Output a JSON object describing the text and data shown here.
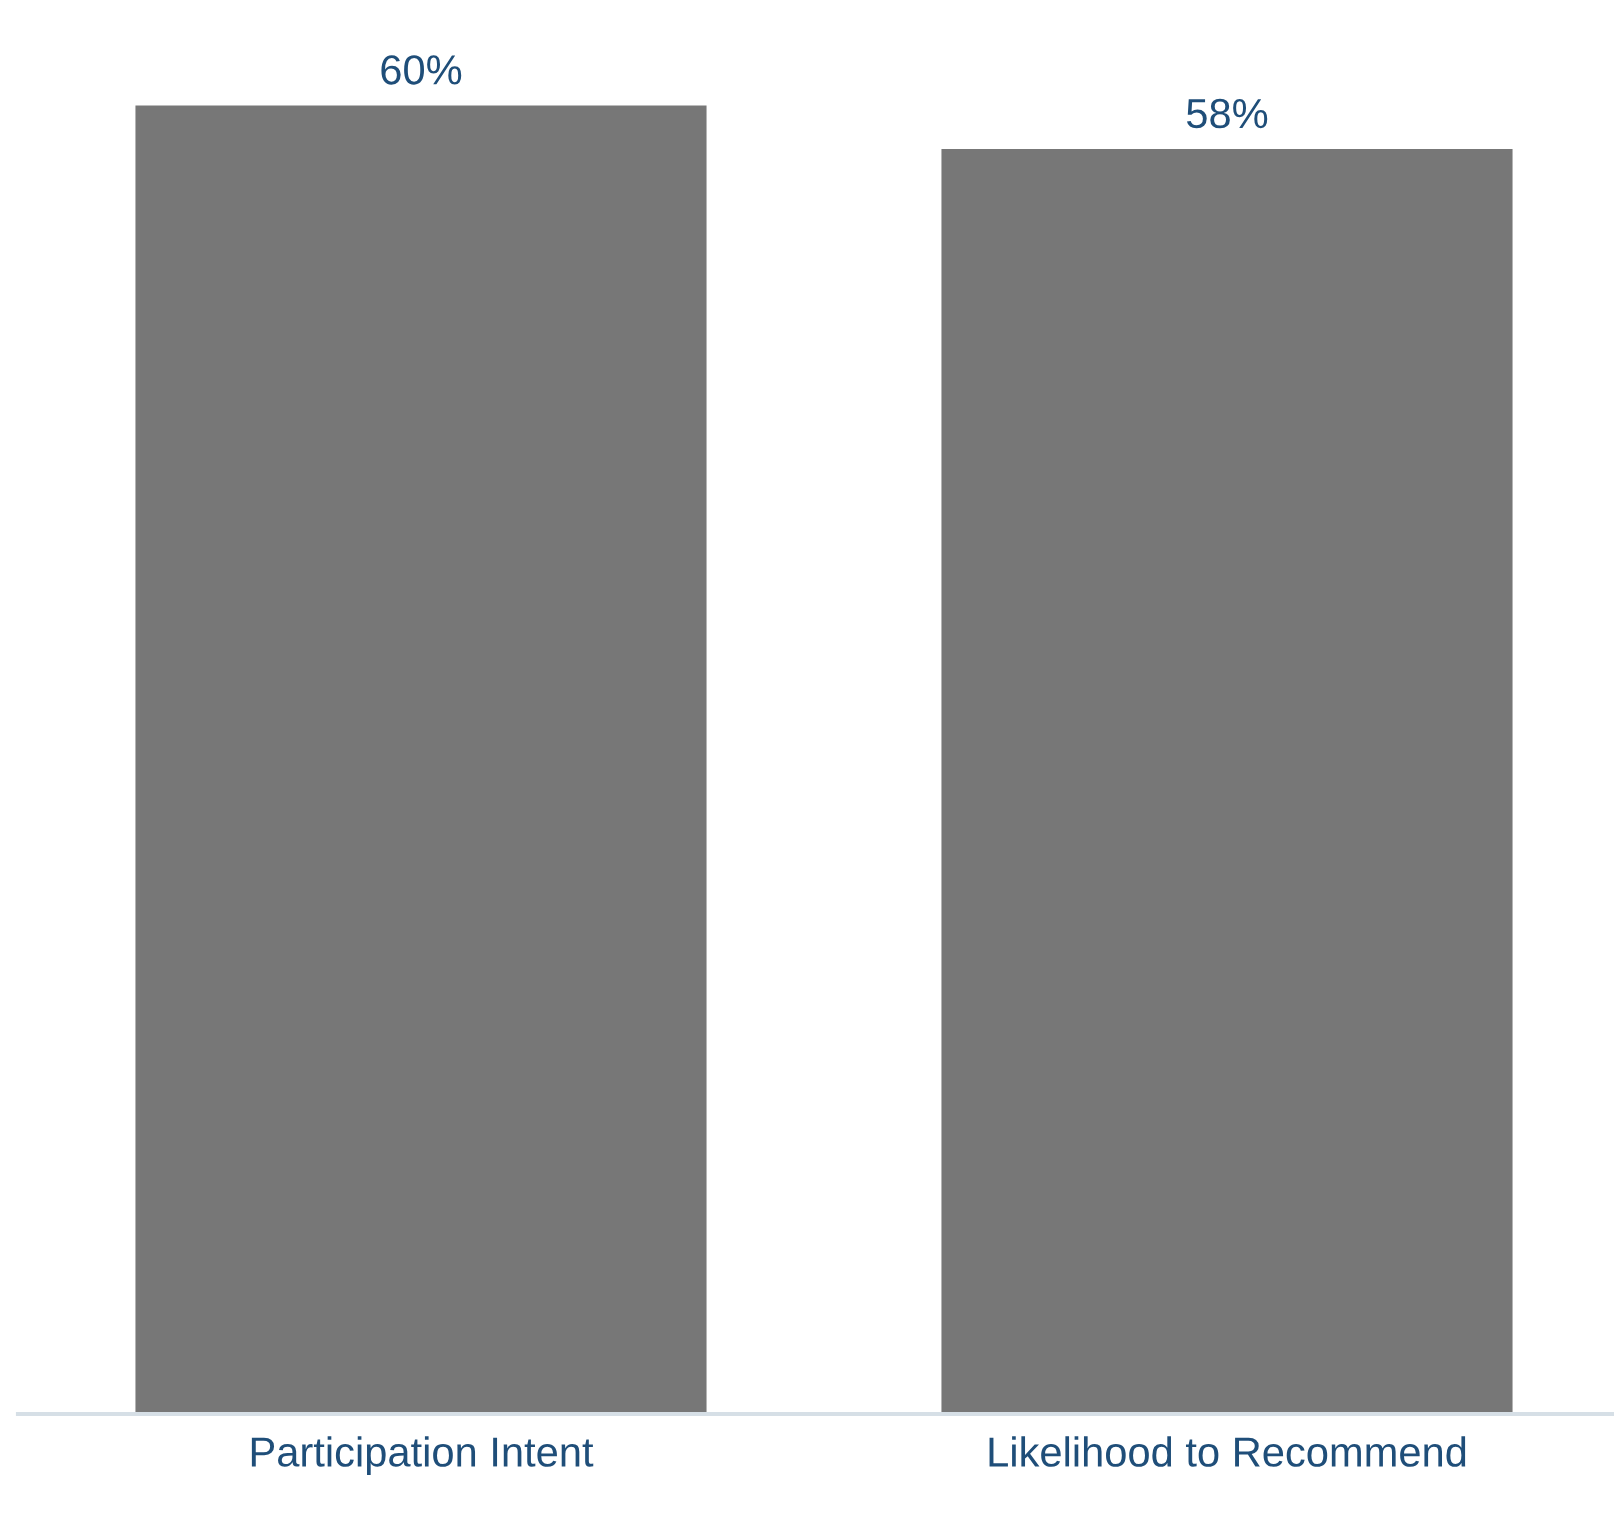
{
  "chart_data": {
    "type": "bar",
    "categories": [
      "Participation Intent",
      "Likelihood to Recommend"
    ],
    "values": [
      60,
      58
    ],
    "value_labels": [
      "60%",
      "58%"
    ],
    "color": "#777777",
    "grid": false,
    "legend": false
  }
}
